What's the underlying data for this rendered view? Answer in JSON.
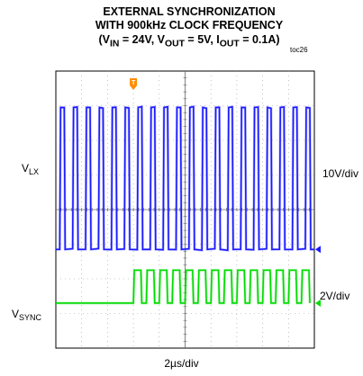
{
  "title": {
    "line1": "EXTERNAL SYNCHRONIZATION",
    "line2": "WITH 900kHz CLOCK FREQUENCY",
    "line3": {
      "open": "(V",
      "in_sub": "IN",
      "in_val": " = 24V, V",
      "out_sub": "OUT",
      "out_val": " = 5V, I",
      "iout_sub": "OUT",
      "iout_val": " = 0.1A)"
    }
  },
  "figure_ref": "toc26",
  "chart_data": {
    "type": "line",
    "grid": true,
    "time_per_div": "2µs/div",
    "x_divisions": 10,
    "y_divisions": 8,
    "trigger_marker": "T",
    "series": [
      {
        "name_main": "V",
        "name_sub": "LX",
        "scale": "10V/div",
        "color": "#1a1aff",
        "pulse_count": 20,
        "pulse_width_fraction": 0.35
      },
      {
        "name_main": "V",
        "name_sub": "SYNC",
        "scale": "2V/div",
        "color": "#00dd00",
        "pulse_start_fraction": 0.3,
        "pulse_count": 14,
        "pulse_width_fraction": 0.58
      }
    ],
    "trigger_color": "#ff8c00"
  }
}
